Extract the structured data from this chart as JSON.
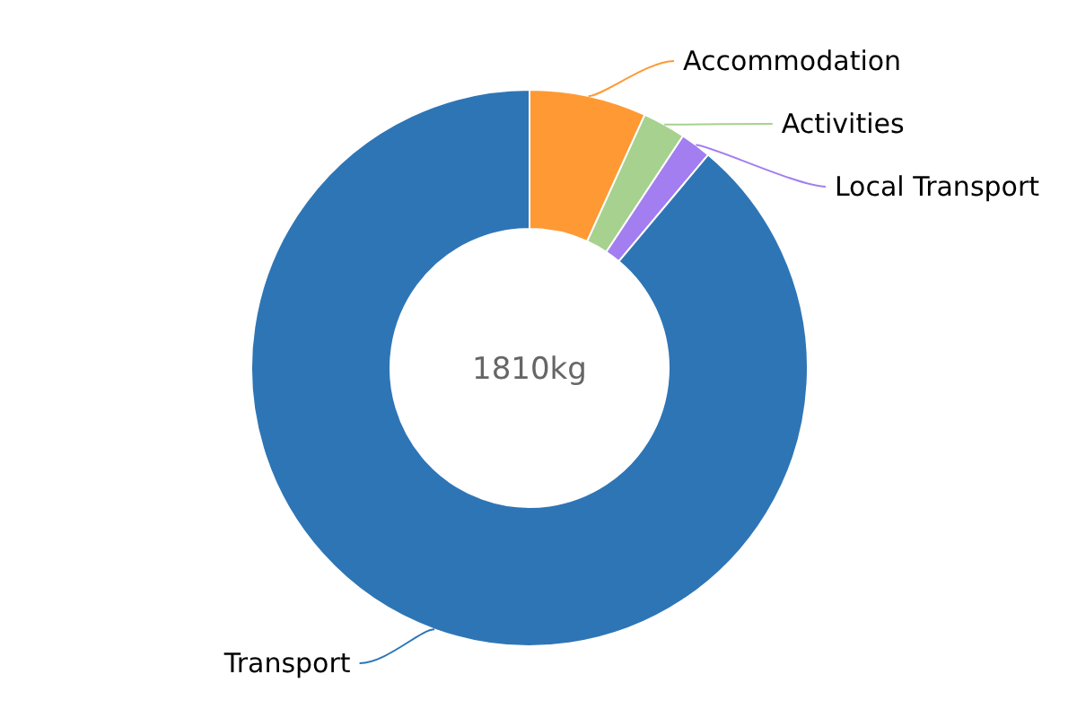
{
  "chart_data": {
    "type": "donut",
    "categories": [
      "Accommodation",
      "Activities",
      "Local Transport",
      "Transport"
    ],
    "values": [
      6.8,
      2.5,
      1.8,
      88.9
    ],
    "colors": [
      "#ff9933",
      "#a6d18e",
      "#a27ef0",
      "#2e75b6"
    ],
    "annotations": [
      "1810kg"
    ]
  }
}
